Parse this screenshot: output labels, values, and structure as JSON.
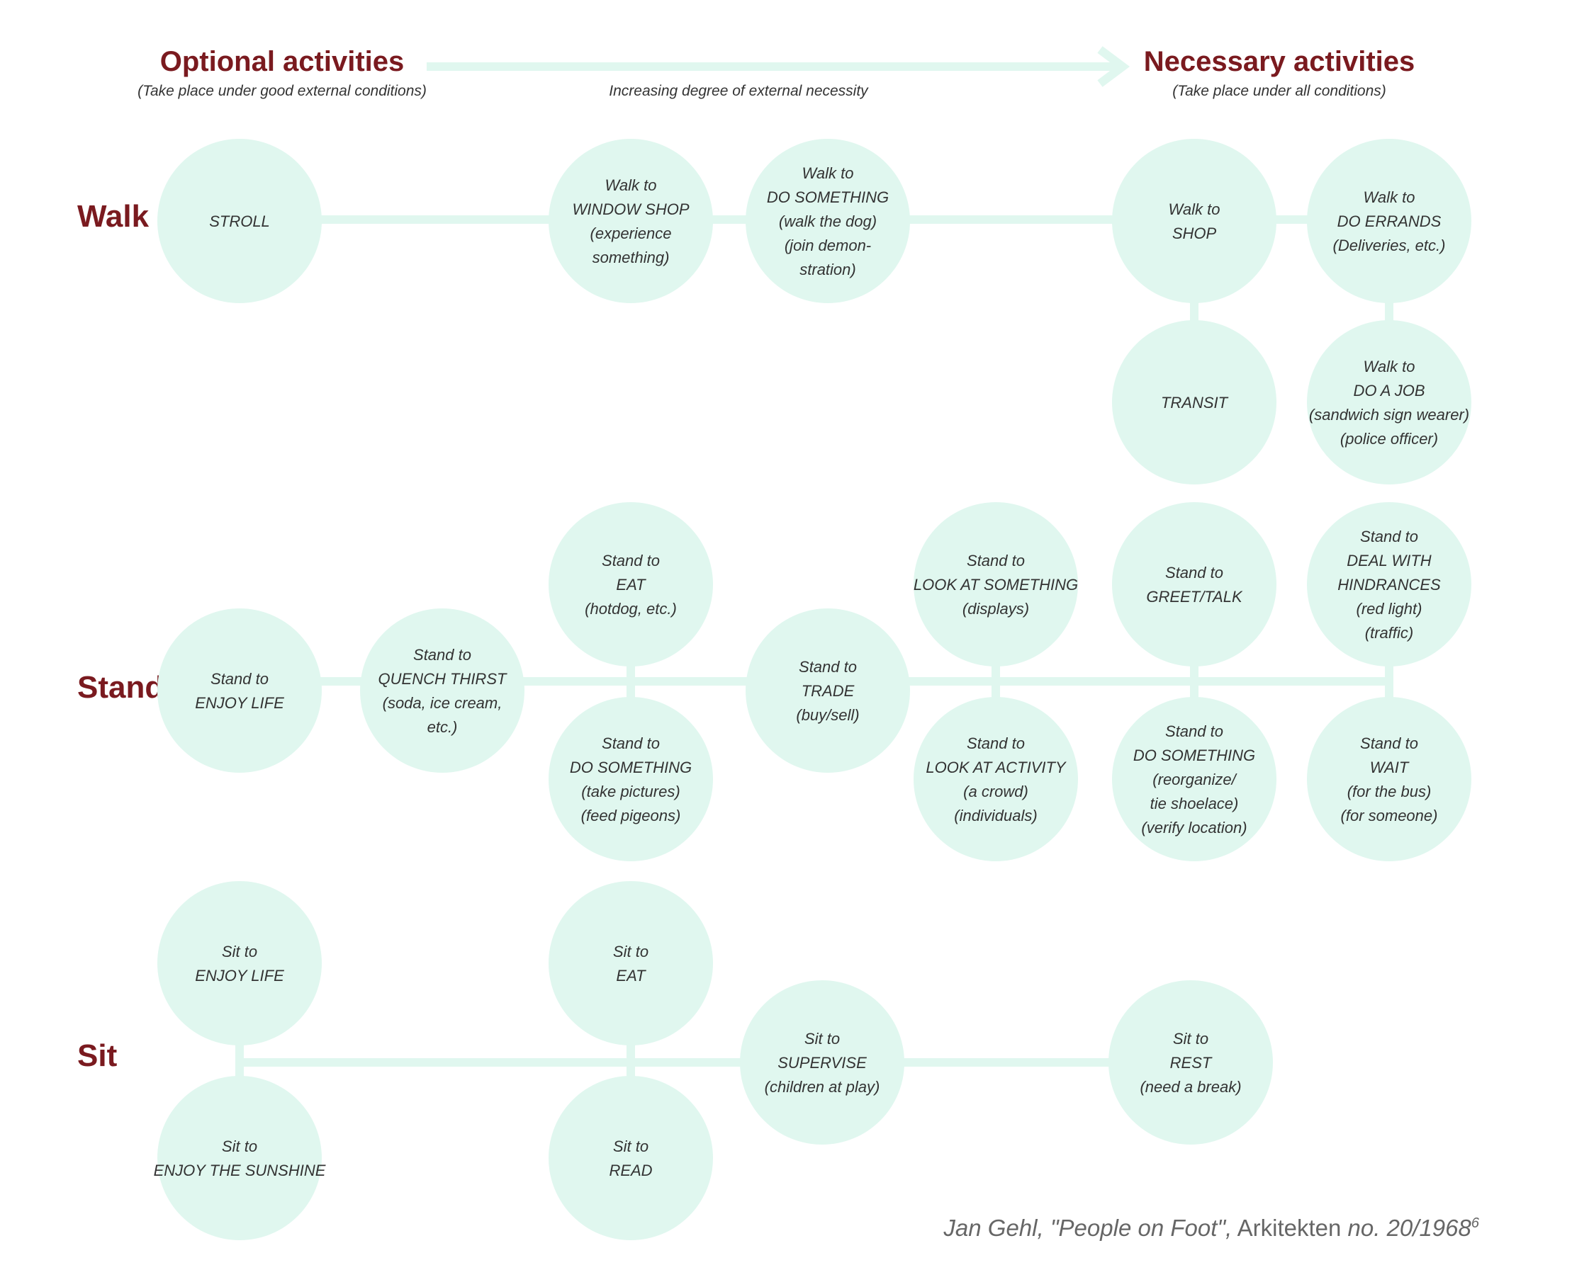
{
  "header": {
    "left_title": "Optional activities",
    "left_sub": "(Take place under good external conditions)",
    "arrow_label": "Increasing degree of external necessity",
    "right_title": "Necessary activities",
    "right_sub": "(Take place under all conditions)"
  },
  "rows": {
    "walk": "Walk",
    "stand": "Stand",
    "sit": "Sit"
  },
  "colors": {
    "circle_fill": "#e0f7ef",
    "connector": "#e0f7ef",
    "label_red": "#7a1a1f",
    "text": "#333333"
  },
  "nodes": {
    "stroll": [
      "STROLL"
    ],
    "walk_window": [
      "Walk to",
      "WINDOW SHOP",
      "(experience",
      "something)"
    ],
    "walk_dosomething": [
      "Walk to",
      "DO SOMETHING",
      "(walk the dog)",
      "(join demon-",
      "stration)"
    ],
    "walk_shop": [
      "Walk to",
      "SHOP"
    ],
    "walk_errands": [
      "Walk to",
      "DO ERRANDS",
      "(Deliveries, etc.)"
    ],
    "transit": [
      "TRANSIT"
    ],
    "walk_job": [
      "Walk to",
      "DO A JOB",
      "(sandwich sign wearer)",
      "(police officer)"
    ],
    "stand_enjoy": [
      "Stand to",
      "ENJOY LIFE"
    ],
    "stand_quench": [
      "Stand to",
      "QUENCH THIRST",
      "(soda, ice cream,",
      "etc.)"
    ],
    "stand_eat": [
      "Stand to",
      "EAT",
      "(hotdog, etc.)"
    ],
    "stand_dosomething": [
      "Stand to",
      "DO SOMETHING",
      "(take pictures)",
      "(feed pigeons)"
    ],
    "stand_trade": [
      "Stand to",
      "TRADE",
      "(buy/sell)"
    ],
    "stand_look": [
      "Stand to",
      "LOOK AT SOMETHING",
      "(displays)"
    ],
    "stand_activity": [
      "Stand to",
      "LOOK AT ACTIVITY",
      "(a crowd)",
      "(individuals)"
    ],
    "stand_greet": [
      "Stand to",
      "GREET/TALK"
    ],
    "stand_dosomething2": [
      "Stand to",
      "DO SOMETHING",
      "(reorganize/",
      "tie shoelace)",
      "(verify location)"
    ],
    "stand_hindrances": [
      "Stand to",
      "DEAL WITH",
      "HINDRANCES",
      "(red light)",
      "(traffic)"
    ],
    "stand_wait": [
      "Stand to",
      "WAIT",
      "(for the bus)",
      "(for someone)"
    ],
    "sit_enjoy": [
      "Sit to",
      "ENJOY LIFE"
    ],
    "sit_sunshine": [
      "Sit to",
      "ENJOY THE SUNSHINE"
    ],
    "sit_eat": [
      "Sit to",
      "EAT"
    ],
    "sit_read": [
      "Sit to",
      "READ"
    ],
    "sit_supervise": [
      "Sit to",
      "SUPERVISE",
      "(children at play)"
    ],
    "sit_rest": [
      "Sit to",
      "REST",
      "(need a break)"
    ]
  },
  "credit": {
    "author": "Jan Gehl,",
    "title": "\"People on Foot\",",
    "publication": "Arkitekten",
    "issue": "no. 20/1968",
    "footnote": "6"
  }
}
